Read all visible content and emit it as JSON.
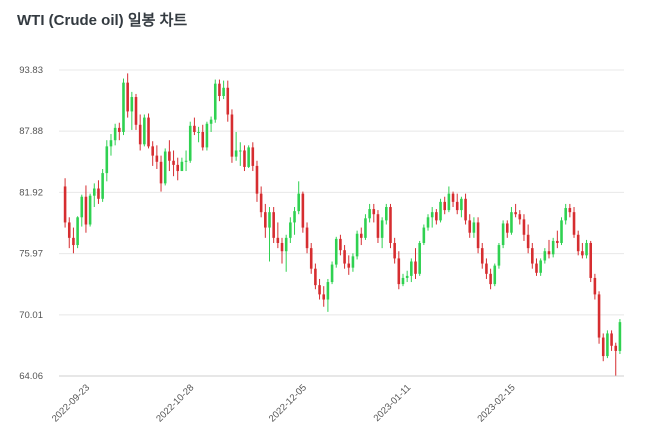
{
  "page": {
    "title": "WTI (Crude oil) 일봉 차트"
  },
  "chart_data": {
    "type": "candlestick",
    "title": "WTI (Crude oil) 일봉 차트",
    "xlabel": "",
    "ylabel": "",
    "ylim": [
      64.06,
      93.83
    ],
    "y_ticks": [
      "93.83",
      "87.88",
      "81.92",
      "75.97",
      "70.01",
      "64.06"
    ],
    "x_ticks": [
      {
        "label": "2022-09-23",
        "index": 5
      },
      {
        "label": "2022-10-28",
        "index": 30
      },
      {
        "label": "2022-12-05",
        "index": 57
      },
      {
        "label": "2023-01-11",
        "index": 82
      },
      {
        "label": "2023-02-15",
        "index": 107
      }
    ],
    "grid": "horizontal",
    "up_color": "#2fd151",
    "down_color": "#d62d30",
    "candles": [
      [
        82.5,
        83.3,
        78.5,
        79.0
      ],
      [
        79.0,
        79.5,
        76.5,
        77.5
      ],
      [
        77.5,
        78.5,
        76.0,
        76.8
      ],
      [
        76.8,
        79.6,
        76.5,
        79.5
      ],
      [
        79.5,
        81.7,
        78.6,
        81.5
      ],
      [
        81.5,
        82.6,
        78.0,
        78.8
      ],
      [
        78.8,
        81.8,
        78.6,
        81.6
      ],
      [
        81.6,
        82.8,
        80.5,
        82.3
      ],
      [
        82.3,
        83.1,
        80.8,
        81.3
      ],
      [
        81.3,
        84.2,
        81.0,
        83.8
      ],
      [
        83.8,
        87.0,
        83.0,
        86.4
      ],
      [
        86.4,
        87.6,
        85.5,
        87.0
      ],
      [
        87.0,
        88.6,
        86.5,
        88.2
      ],
      [
        88.2,
        88.7,
        87.0,
        87.8
      ],
      [
        87.8,
        93.0,
        87.5,
        92.6
      ],
      [
        92.6,
        93.5,
        89.2,
        89.8
      ],
      [
        89.8,
        91.7,
        88.0,
        91.2
      ],
      [
        91.2,
        91.5,
        88.0,
        88.5
      ],
      [
        88.5,
        89.5,
        86.0,
        86.6
      ],
      [
        86.6,
        89.5,
        86.4,
        89.2
      ],
      [
        89.2,
        89.6,
        86.2,
        86.4
      ],
      [
        86.4,
        86.9,
        84.5,
        85.5
      ],
      [
        85.5,
        86.5,
        84.2,
        84.9
      ],
      [
        84.9,
        85.5,
        82.0,
        82.8
      ],
      [
        82.8,
        86.2,
        82.6,
        85.9
      ],
      [
        85.9,
        87.0,
        84.0,
        85.0
      ],
      [
        85.0,
        86.0,
        83.5,
        84.6
      ],
      [
        84.6,
        85.3,
        83.1,
        84.0
      ],
      [
        84.0,
        85.3,
        84.0,
        84.9
      ],
      [
        84.9,
        86.0,
        84.0,
        85.0
      ],
      [
        85.0,
        88.8,
        84.8,
        88.4
      ],
      [
        88.4,
        89.2,
        87.5,
        87.8
      ],
      [
        87.8,
        88.3,
        86.8,
        87.8
      ],
      [
        87.8,
        88.5,
        86.0,
        86.3
      ],
      [
        86.3,
        88.8,
        86.0,
        88.6
      ],
      [
        88.6,
        89.3,
        87.8,
        89.0
      ],
      [
        89.0,
        92.9,
        88.7,
        92.5
      ],
      [
        92.5,
        92.9,
        90.8,
        91.3
      ],
      [
        91.3,
        92.8,
        91.0,
        92.1
      ],
      [
        92.1,
        92.8,
        88.8,
        89.5
      ],
      [
        89.5,
        90.0,
        84.8,
        85.4
      ],
      [
        85.4,
        87.8,
        85.0,
        86.0
      ],
      [
        86.0,
        86.8,
        84.5,
        86.0
      ],
      [
        86.0,
        86.5,
        84.0,
        84.4
      ],
      [
        84.4,
        86.5,
        84.3,
        86.3
      ],
      [
        86.3,
        86.8,
        84.0,
        84.5
      ],
      [
        84.5,
        85.0,
        81.0,
        81.8
      ],
      [
        81.8,
        82.5,
        79.5,
        80.0
      ],
      [
        80.0,
        80.8,
        77.5,
        78.5
      ],
      [
        78.5,
        80.5,
        75.2,
        80.0
      ],
      [
        80.0,
        80.5,
        77.0,
        77.5
      ],
      [
        77.5,
        79.0,
        76.5,
        77.0
      ],
      [
        77.0,
        77.5,
        75.0,
        76.2
      ],
      [
        76.2,
        77.8,
        74.2,
        77.5
      ],
      [
        77.5,
        79.5,
        77.0,
        79.0
      ],
      [
        79.0,
        80.5,
        77.8,
        80.1
      ],
      [
        80.1,
        83.0,
        79.8,
        81.8
      ],
      [
        81.8,
        82.0,
        78.0,
        78.5
      ],
      [
        78.5,
        79.0,
        76.0,
        76.5
      ],
      [
        76.5,
        77.0,
        74.0,
        74.5
      ],
      [
        74.5,
        75.0,
        72.5,
        72.9
      ],
      [
        72.9,
        73.5,
        71.5,
        72.0
      ],
      [
        72.0,
        72.8,
        70.8,
        71.5
      ],
      [
        71.5,
        73.5,
        70.3,
        73.2
      ],
      [
        73.2,
        75.2,
        73.0,
        74.9
      ],
      [
        74.9,
        77.6,
        74.6,
        77.4
      ],
      [
        77.4,
        77.8,
        75.8,
        76.3
      ],
      [
        76.3,
        76.8,
        74.5,
        75.0
      ],
      [
        75.0,
        75.8,
        73.9,
        74.6
      ],
      [
        74.6,
        76.0,
        74.2,
        75.7
      ],
      [
        75.7,
        78.2,
        75.4,
        77.9
      ],
      [
        77.9,
        78.5,
        76.8,
        77.5
      ],
      [
        77.5,
        79.8,
        77.3,
        79.4
      ],
      [
        79.4,
        80.8,
        79.0,
        80.3
      ],
      [
        80.3,
        80.8,
        79.0,
        79.8
      ],
      [
        79.8,
        80.2,
        77.0,
        77.5
      ],
      [
        77.5,
        79.5,
        76.5,
        79.2
      ],
      [
        79.2,
        80.8,
        78.8,
        80.5
      ],
      [
        80.5,
        80.8,
        76.5,
        77.0
      ],
      [
        77.0,
        77.5,
        75.0,
        75.5
      ],
      [
        75.5,
        76.2,
        72.5,
        73.0
      ],
      [
        73.0,
        74.0,
        72.8,
        73.6
      ],
      [
        73.6,
        74.3,
        73.2,
        73.8
      ],
      [
        73.8,
        75.5,
        73.2,
        75.2
      ],
      [
        75.2,
        76.5,
        73.5,
        74.0
      ],
      [
        74.0,
        77.2,
        73.8,
        77.0
      ],
      [
        77.0,
        78.8,
        76.8,
        78.5
      ],
      [
        78.5,
        79.8,
        78.2,
        79.5
      ],
      [
        79.5,
        80.5,
        78.5,
        80.0
      ],
      [
        80.0,
        80.3,
        78.8,
        79.2
      ],
      [
        79.2,
        81.3,
        79.0,
        81.0
      ],
      [
        81.0,
        81.5,
        79.8,
        80.2
      ],
      [
        80.2,
        82.5,
        80.0,
        81.8
      ],
      [
        81.8,
        82.0,
        80.5,
        81.0
      ],
      [
        81.0,
        81.8,
        79.8,
        80.2
      ],
      [
        80.2,
        81.5,
        79.5,
        81.3
      ],
      [
        81.3,
        81.8,
        78.8,
        79.2
      ],
      [
        79.2,
        79.8,
        77.5,
        78.0
      ],
      [
        78.0,
        79.5,
        77.5,
        79.0
      ],
      [
        79.0,
        79.5,
        76.0,
        76.5
      ],
      [
        76.5,
        77.0,
        74.5,
        75.0
      ],
      [
        75.0,
        75.5,
        73.5,
        74.0
      ],
      [
        74.0,
        74.5,
        72.5,
        73.0
      ],
      [
        73.0,
        75.0,
        72.8,
        74.8
      ],
      [
        74.8,
        77.0,
        74.5,
        76.8
      ],
      [
        76.8,
        79.2,
        76.5,
        78.9
      ],
      [
        78.9,
        79.2,
        77.5,
        78.0
      ],
      [
        78.0,
        80.5,
        77.8,
        80.0
      ],
      [
        80.0,
        80.8,
        79.5,
        79.8
      ],
      [
        79.8,
        80.2,
        78.8,
        79.3
      ],
      [
        79.3,
        79.8,
        77.2,
        77.8
      ],
      [
        77.8,
        78.8,
        76.0,
        76.5
      ],
      [
        76.5,
        77.0,
        74.5,
        75.0
      ],
      [
        75.0,
        75.5,
        73.8,
        74.1
      ],
      [
        74.1,
        75.5,
        73.8,
        75.3
      ],
      [
        75.3,
        76.5,
        75.0,
        76.2
      ],
      [
        76.2,
        77.3,
        75.5,
        75.9
      ],
      [
        75.9,
        77.5,
        75.6,
        77.2
      ],
      [
        77.2,
        78.2,
        76.5,
        77.0
      ],
      [
        77.0,
        79.5,
        76.8,
        79.2
      ],
      [
        79.2,
        80.8,
        78.8,
        80.4
      ],
      [
        80.4,
        80.8,
        79.5,
        80.0
      ],
      [
        80.0,
        80.5,
        77.5,
        77.8
      ],
      [
        77.8,
        78.2,
        75.8,
        76.2
      ],
      [
        76.2,
        77.0,
        75.5,
        75.8
      ],
      [
        75.8,
        77.3,
        75.5,
        77.0
      ],
      [
        77.0,
        77.2,
        73.2,
        73.6
      ],
      [
        73.6,
        74.0,
        71.5,
        72.0
      ],
      [
        72.0,
        72.3,
        67.2,
        67.8
      ],
      [
        67.8,
        68.2,
        65.5,
        66.0
      ],
      [
        66.0,
        68.5,
        65.8,
        68.2
      ],
      [
        68.2,
        68.5,
        66.5,
        67.0
      ],
      [
        67.0,
        67.3,
        64.1,
        66.5
      ],
      [
        66.5,
        69.6,
        66.2,
        69.3
      ]
    ]
  }
}
